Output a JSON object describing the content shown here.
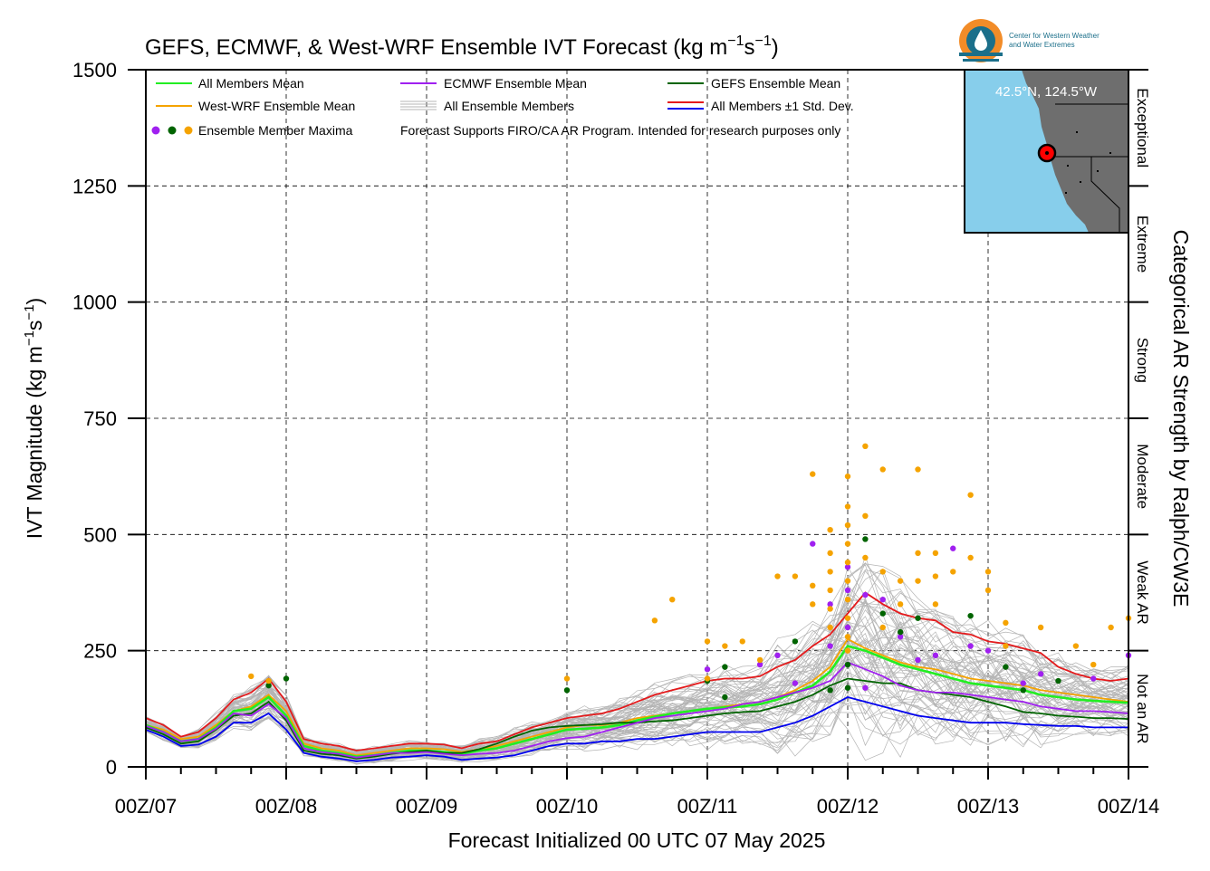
{
  "header": {
    "title": "GEFS, ECMWF, & West-WRF Ensemble IVT Forecast (kg m",
    "title_sup1": "−1",
    "title_mid": "s",
    "title_sup2": "−1",
    "title_end": ")"
  },
  "logo": {
    "line1": "Center for Western Weather",
    "line2": "and Water Extremes"
  },
  "inset_map": {
    "location_label": "42.5°N, 124.5°W"
  },
  "legend": {
    "all_members_mean": "All Members Mean",
    "westwrf_mean": "West-WRF Ensemble Mean",
    "ecmwf_mean": "ECMWF Ensemble Mean",
    "all_members": "All Ensemble Members",
    "gefs_mean": "GEFS Ensemble Mean",
    "std_dev": "All Members ±1 Std. Dev.",
    "maxima": "Ensemble Member Maxima",
    "disclaimer": "Forecast Supports FIRO/CA AR Program. Intended for research purposes only"
  },
  "axes": {
    "ylabel": "IVT Magnitude (kg m",
    "ylabel_sup1": "−1",
    "ylabel_mid": "s",
    "ylabel_sup2": "−1",
    "ylabel_end": ")",
    "xlabel": "Forecast Initialized 00 UTC 07 May 2025",
    "right_label": "Categorical AR Strength by Ralph/CW3E"
  },
  "colors": {
    "all_mean": "#22ee22",
    "westwrf": "#f5a300",
    "ecmwf": "#a020f0",
    "gefs": "#006400",
    "plus_sd": "#e41a1c",
    "minus_sd": "#0000ee",
    "members": "#b4b4b4",
    "ocean": "#87ceeb",
    "land": "#6e6e6e"
  },
  "chart_data": {
    "type": "line",
    "x_unit": "hours since 00Z/07 May 2025",
    "xlim": [
      0,
      168
    ],
    "ylim": [
      0,
      1500
    ],
    "x_ticks": [
      0,
      24,
      48,
      72,
      96,
      120,
      144,
      168
    ],
    "x_tick_labels": [
      "00Z/07",
      "00Z/08",
      "00Z/09",
      "00Z/10",
      "00Z/11",
      "00Z/12",
      "00Z/13",
      "00Z/14"
    ],
    "y_ticks": [
      0,
      250,
      500,
      750,
      1000,
      1250,
      1500
    ],
    "y_tick_labels": [
      "0",
      "250",
      "500",
      "750",
      "1000",
      "1250",
      "1500"
    ],
    "grid": true,
    "legend_position": "top-left",
    "categories_right": [
      {
        "label": "Not an AR",
        "from": 0,
        "to": 250
      },
      {
        "label": "Weak AR",
        "from": 250,
        "to": 500
      },
      {
        "label": "Moderate",
        "from": 500,
        "to": 750
      },
      {
        "label": "Strong",
        "from": 750,
        "to": 1000
      },
      {
        "label": "Extreme",
        "from": 1000,
        "to": 1250
      },
      {
        "label": "Exceptional",
        "from": 1250,
        "to": 1500
      }
    ],
    "series": [
      {
        "name": "All Members +1 Std. Dev.",
        "key": "plus_sd",
        "x": [
          0,
          3,
          6,
          9,
          12,
          15,
          18,
          21,
          24,
          27,
          30,
          33,
          36,
          39,
          42,
          45,
          48,
          51,
          54,
          57,
          60,
          63,
          66,
          69,
          72,
          75,
          78,
          81,
          84,
          87,
          90,
          93,
          96,
          99,
          102,
          105,
          108,
          111,
          114,
          117,
          120,
          123,
          126,
          129,
          132,
          135,
          138,
          141,
          144,
          147,
          150,
          153,
          156,
          159,
          162,
          165,
          168
        ],
        "y": [
          105,
          90,
          65,
          75,
          105,
          145,
          160,
          190,
          140,
          60,
          50,
          45,
          35,
          40,
          45,
          50,
          50,
          48,
          40,
          50,
          55,
          70,
          85,
          95,
          105,
          110,
          115,
          125,
          140,
          155,
          165,
          175,
          185,
          190,
          190,
          195,
          215,
          230,
          260,
          285,
          330,
          375,
          350,
          330,
          320,
          315,
          290,
          285,
          270,
          265,
          255,
          245,
          215,
          200,
          190,
          185,
          190
        ]
      },
      {
        "name": "West-WRF Ensemble Mean",
        "key": "westwrf",
        "x": [
          0,
          3,
          6,
          9,
          12,
          15,
          18,
          21,
          24,
          27,
          30,
          33,
          36,
          39,
          42,
          45,
          48,
          51,
          54,
          57,
          60,
          63,
          66,
          69,
          72,
          75,
          78,
          81,
          84,
          87,
          90,
          93,
          96,
          99,
          102,
          105,
          108,
          111,
          114,
          117,
          120,
          123,
          126,
          129,
          132,
          135,
          138,
          141,
          144,
          147,
          150,
          153,
          156,
          159,
          162,
          165,
          168
        ],
        "y": [
          90,
          80,
          60,
          65,
          90,
          120,
          130,
          155,
          120,
          50,
          40,
          35,
          25,
          30,
          35,
          40,
          40,
          38,
          32,
          38,
          45,
          55,
          65,
          75,
          85,
          90,
          90,
          95,
          105,
          110,
          115,
          120,
          125,
          130,
          135,
          140,
          150,
          165,
          185,
          215,
          275,
          255,
          240,
          225,
          215,
          210,
          200,
          190,
          185,
          180,
          175,
          165,
          160,
          155,
          150,
          145,
          140
        ]
      },
      {
        "name": "All Members Mean",
        "key": "all_mean",
        "x": [
          0,
          3,
          6,
          9,
          12,
          15,
          18,
          21,
          24,
          27,
          30,
          33,
          36,
          39,
          42,
          45,
          48,
          51,
          54,
          57,
          60,
          63,
          66,
          69,
          72,
          75,
          78,
          81,
          84,
          87,
          90,
          93,
          96,
          99,
          102,
          105,
          108,
          111,
          114,
          117,
          120,
          123,
          126,
          129,
          132,
          135,
          138,
          141,
          144,
          147,
          150,
          153,
          156,
          159,
          162,
          165,
          168
        ],
        "y": [
          90,
          75,
          55,
          60,
          85,
          120,
          125,
          150,
          110,
          45,
          35,
          30,
          22,
          25,
          30,
          35,
          35,
          32,
          28,
          35,
          40,
          50,
          60,
          70,
          80,
          82,
          85,
          90,
          100,
          108,
          115,
          120,
          125,
          128,
          130,
          135,
          145,
          160,
          175,
          205,
          260,
          250,
          235,
          220,
          210,
          200,
          190,
          180,
          175,
          170,
          165,
          155,
          150,
          145,
          142,
          140,
          138
        ]
      },
      {
        "name": "GEFS Ensemble Mean",
        "key": "gefs",
        "x": [
          0,
          3,
          6,
          9,
          12,
          15,
          18,
          21,
          24,
          27,
          30,
          33,
          36,
          39,
          42,
          45,
          48,
          51,
          54,
          57,
          60,
          63,
          66,
          69,
          72,
          75,
          78,
          81,
          84,
          87,
          90,
          93,
          96,
          99,
          102,
          105,
          108,
          111,
          114,
          117,
          120,
          123,
          126,
          129,
          132,
          135,
          138,
          141,
          144,
          147,
          150,
          153,
          156,
          159,
          162,
          165,
          168
        ],
        "y": [
          85,
          70,
          50,
          55,
          80,
          110,
          115,
          140,
          100,
          35,
          28,
          25,
          18,
          22,
          28,
          32,
          35,
          30,
          30,
          38,
          50,
          65,
          78,
          85,
          88,
          90,
          92,
          95,
          95,
          98,
          100,
          105,
          110,
          115,
          118,
          120,
          130,
          140,
          155,
          175,
          190,
          185,
          180,
          180,
          165,
          160,
          155,
          150,
          140,
          130,
          118,
          115,
          110,
          108,
          105,
          105,
          103
        ]
      },
      {
        "name": "ECMWF Ensemble Mean",
        "key": "ecmwf",
        "x": [
          0,
          3,
          6,
          9,
          12,
          15,
          18,
          21,
          24,
          27,
          30,
          33,
          36,
          39,
          42,
          45,
          48,
          51,
          54,
          57,
          60,
          63,
          66,
          69,
          72,
          75,
          78,
          81,
          84,
          87,
          90,
          93,
          96,
          99,
          102,
          105,
          108,
          111,
          114,
          117,
          120,
          123,
          126,
          129,
          132,
          135,
          138,
          141,
          144,
          147,
          150,
          153,
          156,
          159,
          162,
          165,
          168
        ],
        "y": [
          88,
          75,
          55,
          60,
          82,
          115,
          110,
          135,
          105,
          40,
          32,
          28,
          20,
          25,
          30,
          30,
          32,
          28,
          25,
          28,
          30,
          35,
          45,
          55,
          62,
          65,
          75,
          85,
          95,
          105,
          110,
          115,
          120,
          125,
          135,
          140,
          150,
          160,
          170,
          185,
          225,
          210,
          195,
          175,
          165,
          160,
          160,
          155,
          150,
          145,
          140,
          130,
          125,
          120,
          120,
          118,
          115
        ]
      },
      {
        "name": "All Members −1 Std. Dev.",
        "key": "minus_sd",
        "x": [
          0,
          3,
          6,
          9,
          12,
          15,
          18,
          21,
          24,
          27,
          30,
          33,
          36,
          39,
          42,
          45,
          48,
          51,
          54,
          57,
          60,
          63,
          66,
          69,
          72,
          75,
          78,
          81,
          84,
          87,
          90,
          93,
          96,
          99,
          102,
          105,
          108,
          111,
          114,
          117,
          120,
          123,
          126,
          129,
          132,
          135,
          138,
          141,
          144,
          147,
          150,
          153,
          156,
          159,
          162,
          165,
          168
        ],
        "y": [
          80,
          65,
          45,
          48,
          65,
          95,
          95,
          115,
          80,
          30,
          22,
          18,
          12,
          15,
          20,
          22,
          25,
          22,
          15,
          18,
          20,
          25,
          35,
          45,
          50,
          50,
          55,
          55,
          60,
          60,
          65,
          70,
          75,
          75,
          75,
          75,
          85,
          95,
          110,
          130,
          150,
          140,
          130,
          120,
          110,
          105,
          100,
          95,
          95,
          95,
          92,
          90,
          88,
          88,
          85,
          85,
          85
        ]
      }
    ],
    "maxima": {
      "ecmwf": [
        [
          120,
          430
        ],
        [
          120,
          380
        ],
        [
          114,
          480
        ],
        [
          117,
          350
        ],
        [
          123,
          370
        ],
        [
          126,
          360
        ],
        [
          129,
          280
        ],
        [
          111,
          180
        ],
        [
          108,
          240
        ],
        [
          105,
          220
        ],
        [
          96,
          210
        ],
        [
          132,
          230
        ],
        [
          135,
          240
        ],
        [
          138,
          470
        ],
        [
          141,
          260
        ],
        [
          144,
          250
        ],
        [
          150,
          180
        ],
        [
          153,
          200
        ],
        [
          117,
          260
        ],
        [
          120,
          300
        ],
        [
          168,
          240
        ],
        [
          162,
          190
        ],
        [
          123,
          170
        ]
      ],
      "gefs": [
        [
          21,
          175
        ],
        [
          24,
          190
        ],
        [
          72,
          165
        ],
        [
          96,
          185
        ],
        [
          99,
          215
        ],
        [
          99,
          150
        ],
        [
          111,
          270
        ],
        [
          117,
          165
        ],
        [
          120,
          170
        ],
        [
          123,
          490
        ],
        [
          126,
          330
        ],
        [
          129,
          290
        ],
        [
          132,
          320
        ],
        [
          141,
          325
        ],
        [
          147,
          215
        ],
        [
          156,
          185
        ],
        [
          150,
          165
        ],
        [
          120,
          220
        ]
      ],
      "westwrf": [
        [
          72,
          190
        ],
        [
          87,
          315
        ],
        [
          90,
          360
        ],
        [
          96,
          190
        ],
        [
          96,
          270
        ],
        [
          99,
          260
        ],
        [
          102,
          270
        ],
        [
          105,
          230
        ],
        [
          108,
          410
        ],
        [
          111,
          410
        ],
        [
          114,
          630
        ],
        [
          114,
          390
        ],
        [
          114,
          350
        ],
        [
          117,
          510
        ],
        [
          117,
          460
        ],
        [
          117,
          420
        ],
        [
          117,
          380
        ],
        [
          117,
          340
        ],
        [
          117,
          300
        ],
        [
          120,
          625
        ],
        [
          120,
          560
        ],
        [
          120,
          520
        ],
        [
          120,
          480
        ],
        [
          120,
          440
        ],
        [
          120,
          400
        ],
        [
          120,
          360
        ],
        [
          120,
          320
        ],
        [
          120,
          280
        ],
        [
          120,
          250
        ],
        [
          123,
          690
        ],
        [
          123,
          540
        ],
        [
          123,
          450
        ],
        [
          126,
          640
        ],
        [
          126,
          420
        ],
        [
          129,
          400
        ],
        [
          129,
          350
        ],
        [
          132,
          640
        ],
        [
          132,
          460
        ],
        [
          132,
          400
        ],
        [
          135,
          460
        ],
        [
          135,
          410
        ],
        [
          138,
          420
        ],
        [
          141,
          585
        ],
        [
          141,
          450
        ],
        [
          144,
          420
        ],
        [
          144,
          380
        ],
        [
          147,
          310
        ],
        [
          147,
          260
        ],
        [
          153,
          300
        ],
        [
          159,
          260
        ],
        [
          162,
          220
        ],
        [
          165,
          300
        ],
        [
          168,
          320
        ],
        [
          18,
          195
        ],
        [
          21,
          185
        ],
        [
          126,
          300
        ],
        [
          135,
          350
        ]
      ]
    }
  }
}
